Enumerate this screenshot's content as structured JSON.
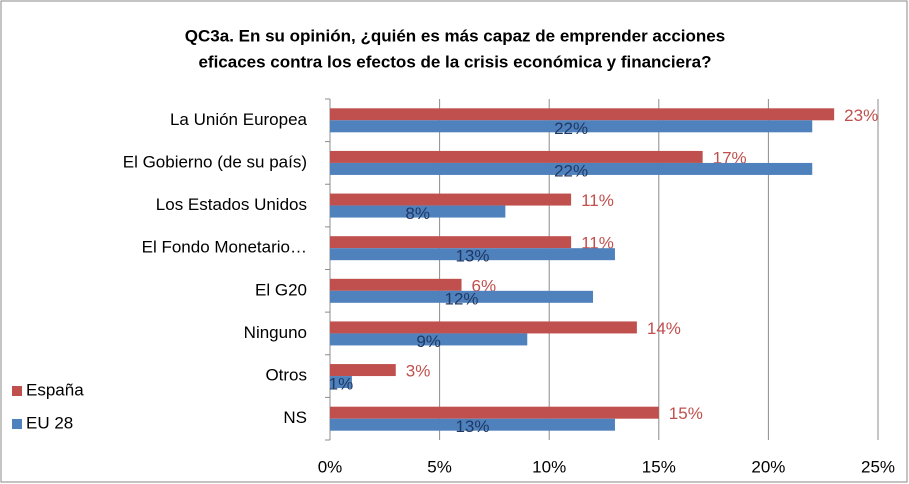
{
  "chart_data": {
    "type": "hbar",
    "title": [
      "QC3a. En su opinión, ¿quién es más capaz de emprender acciones",
      "eficaces contra los efectos de la crisis económica y financiera?"
    ],
    "categories": [
      "La Unión Europea",
      "El Gobierno (de su país)",
      "Los Estados Unidos",
      "El Fondo Monetario…",
      "El G20",
      "Ninguno",
      "Otros",
      "NS"
    ],
    "series": [
      {
        "name": "España",
        "color": "#c0504d",
        "values": [
          23,
          17,
          11,
          11,
          6,
          14,
          3,
          15
        ],
        "value_labels": [
          "23%",
          "17%",
          "11%",
          "11%",
          "6%",
          "14%",
          "3%",
          "15%"
        ]
      },
      {
        "name": "EU 28",
        "color": "#4f81bd",
        "values": [
          22,
          22,
          8,
          13,
          12,
          9,
          1,
          13
        ],
        "value_labels": [
          "22%",
          "22%",
          "8%",
          "13%",
          "12%",
          "9%",
          "1%",
          "13%"
        ]
      }
    ],
    "xlim": [
      0,
      25
    ],
    "xticks": [
      {
        "value": 0,
        "label": "0%"
      },
      {
        "value": 5,
        "label": "5%"
      },
      {
        "value": 10,
        "label": "10%"
      },
      {
        "value": 15,
        "label": "15%"
      },
      {
        "value": 20,
        "label": "20%"
      },
      {
        "value": 25,
        "label": "25%"
      }
    ],
    "grid": true,
    "legend": "lower left"
  }
}
